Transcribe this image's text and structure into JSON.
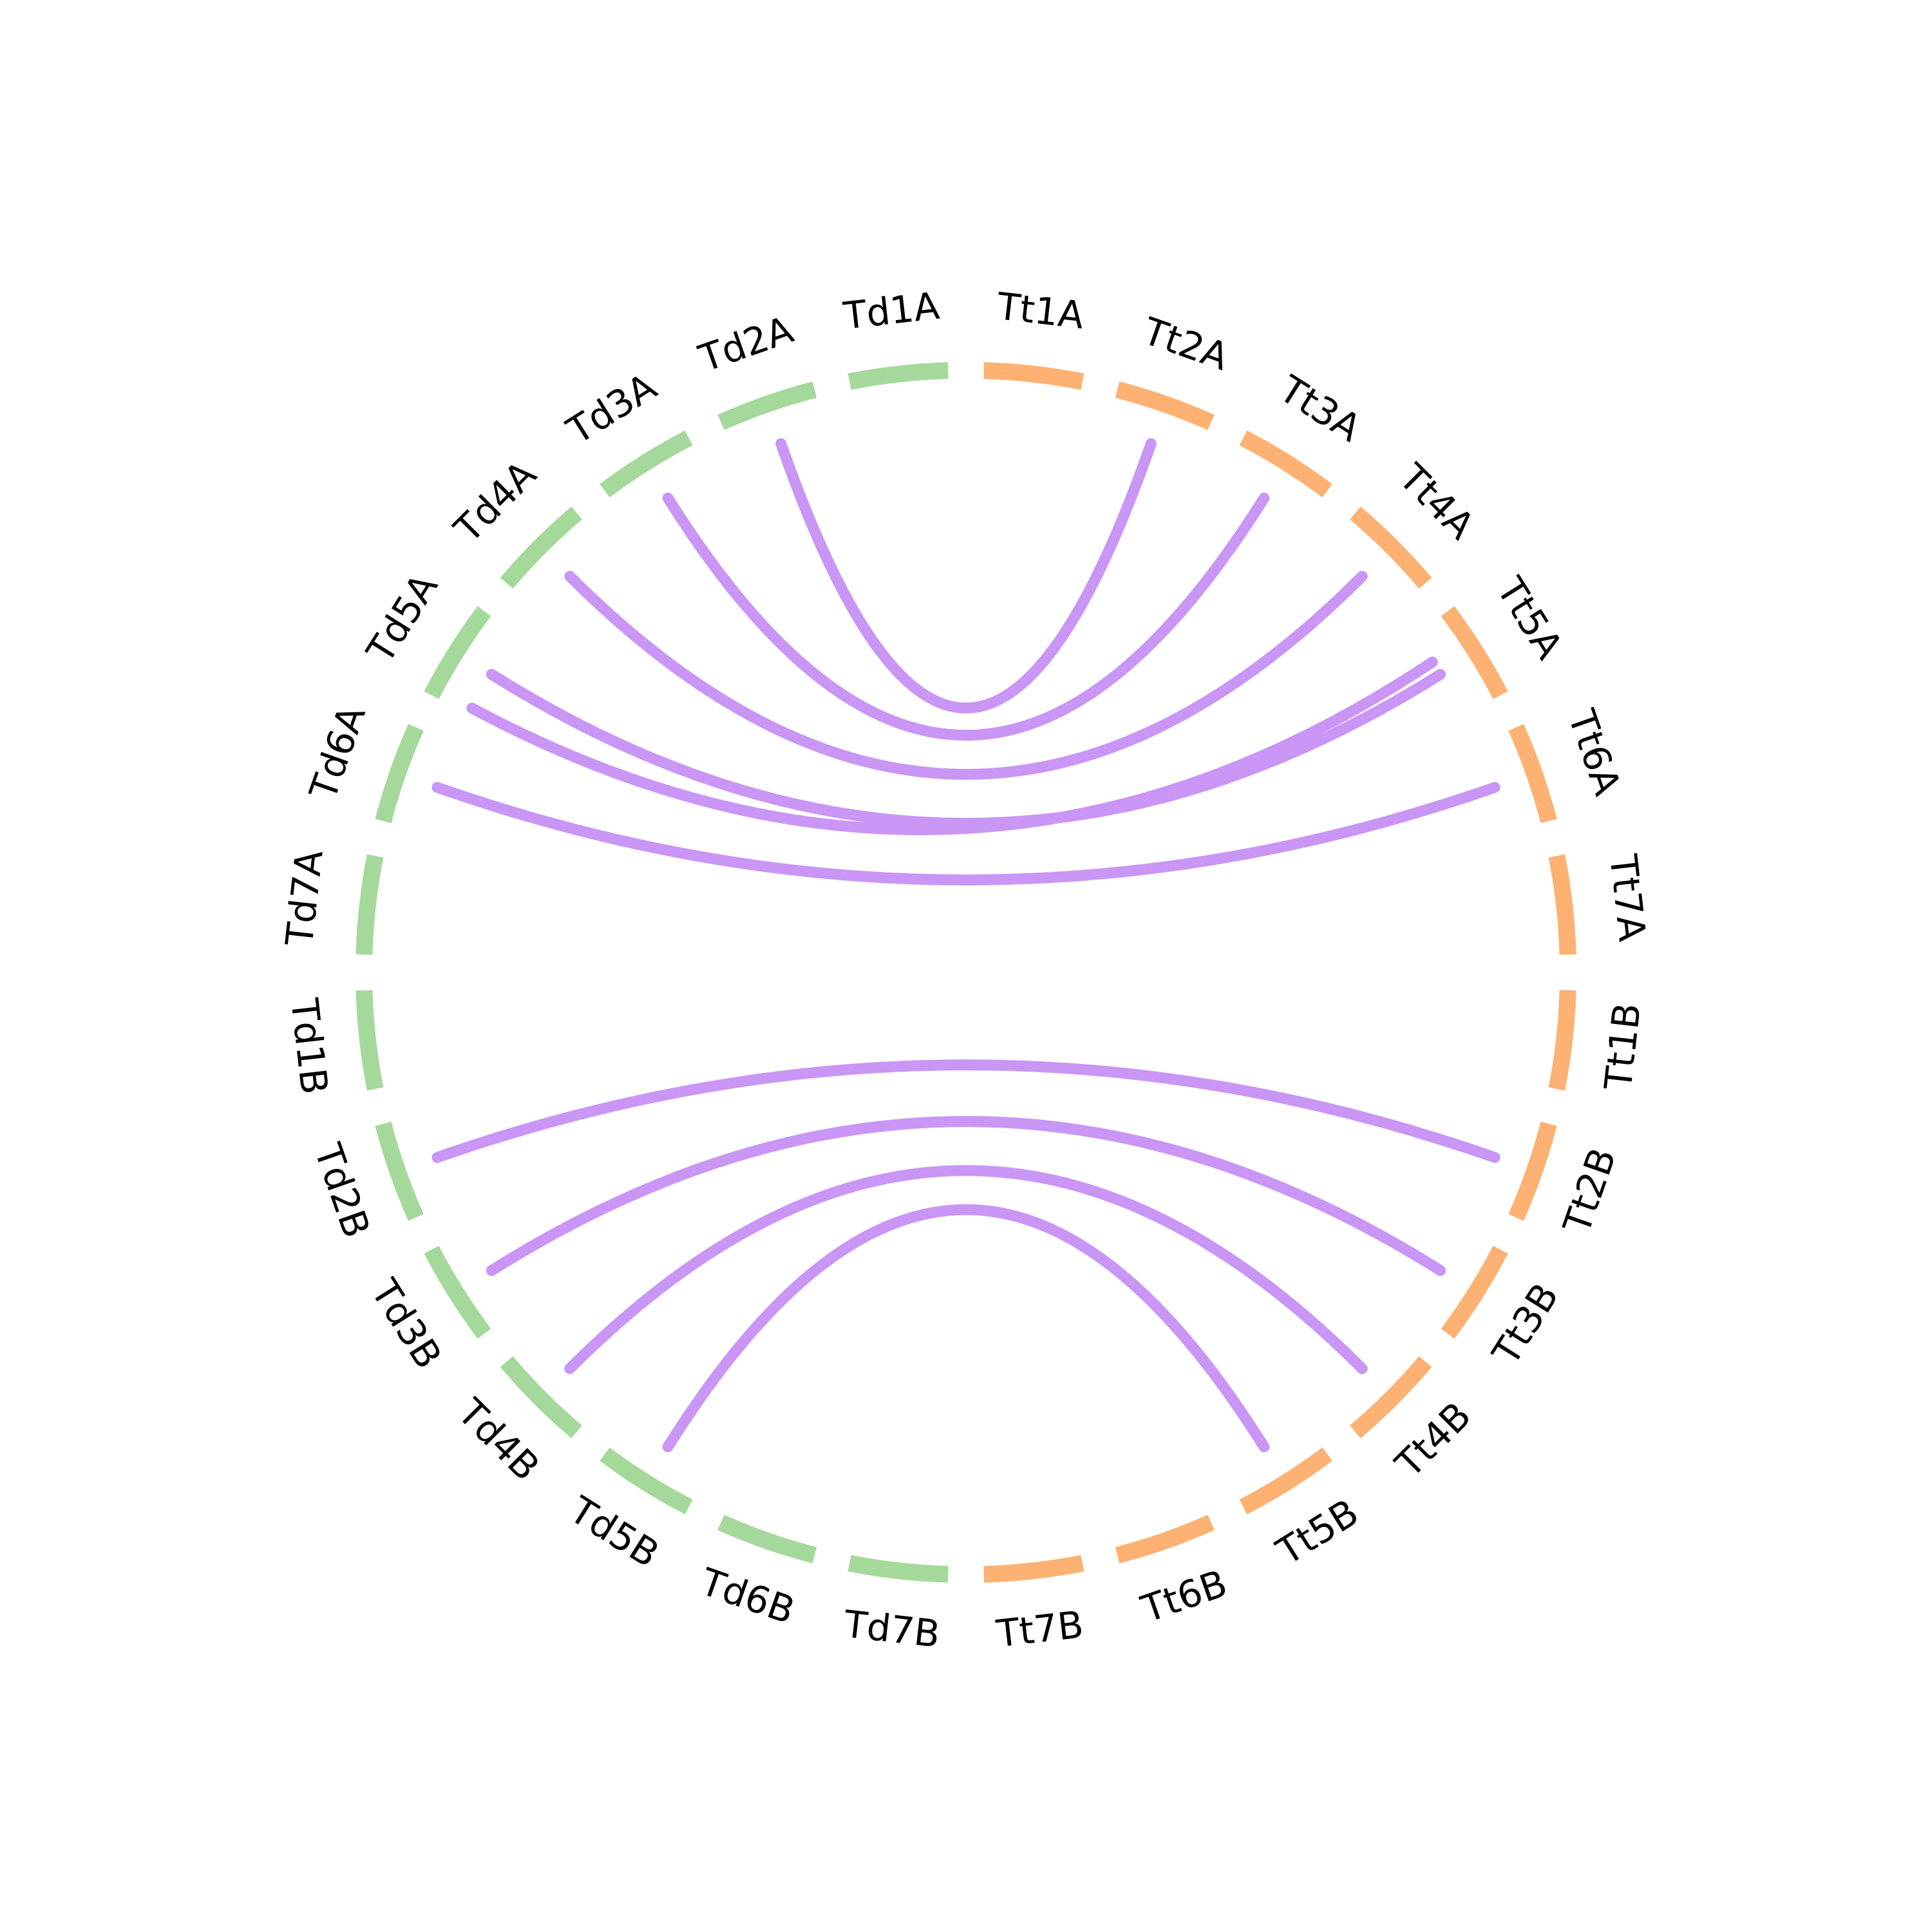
{
  "chart_data": {
    "type": "chord",
    "colors": {
      "Td": "#a5d99b",
      "Tt": "#fdb172",
      "link": "#c996f6"
    },
    "segments": [
      {
        "label": "Td1A",
        "group": "Td"
      },
      {
        "label": "Td2A",
        "group": "Td"
      },
      {
        "label": "Td3A",
        "group": "Td"
      },
      {
        "label": "Td4A",
        "group": "Td"
      },
      {
        "label": "Td5A",
        "group": "Td"
      },
      {
        "label": "Td6A",
        "group": "Td"
      },
      {
        "label": "Td7A",
        "group": "Td"
      },
      {
        "label": "Td1B",
        "group": "Td"
      },
      {
        "label": "Td2B",
        "group": "Td"
      },
      {
        "label": "Td3B",
        "group": "Td"
      },
      {
        "label": "Td4B",
        "group": "Td"
      },
      {
        "label": "Td5B",
        "group": "Td"
      },
      {
        "label": "Td6B",
        "group": "Td"
      },
      {
        "label": "Td7B",
        "group": "Td"
      },
      {
        "label": "Tt7B",
        "group": "Tt"
      },
      {
        "label": "Tt6B",
        "group": "Tt"
      },
      {
        "label": "Tt5B",
        "group": "Tt"
      },
      {
        "label": "Tt4B",
        "group": "Tt"
      },
      {
        "label": "Tt3B",
        "group": "Tt"
      },
      {
        "label": "Tt2B",
        "group": "Tt"
      },
      {
        "label": "Tt1B",
        "group": "Tt"
      },
      {
        "label": "Tt7A",
        "group": "Tt"
      },
      {
        "label": "Tt6A",
        "group": "Tt"
      },
      {
        "label": "Tt5A",
        "group": "Tt"
      },
      {
        "label": "Tt4A",
        "group": "Tt"
      },
      {
        "label": "Tt3A",
        "group": "Tt"
      },
      {
        "label": "Tt2A",
        "group": "Tt"
      },
      {
        "label": "Tt1A",
        "group": "Tt"
      }
    ],
    "links": [
      {
        "from": "Td2A",
        "to": "Tt2A"
      },
      {
        "from": "Td3A",
        "to": "Tt3A"
      },
      {
        "from": "Td4A",
        "to": "Tt4A"
      },
      {
        "from": "Td5A",
        "to": "Tt5A"
      },
      {
        "from": "Td5A",
        "to": "Tt5A"
      },
      {
        "from": "Td6A",
        "to": "Tt6A"
      },
      {
        "from": "Td2B",
        "to": "Tt2B"
      },
      {
        "from": "Td3B",
        "to": "Tt3B"
      },
      {
        "from": "Td4B",
        "to": "Tt4B"
      },
      {
        "from": "Td5B",
        "to": "Tt5B"
      }
    ]
  }
}
